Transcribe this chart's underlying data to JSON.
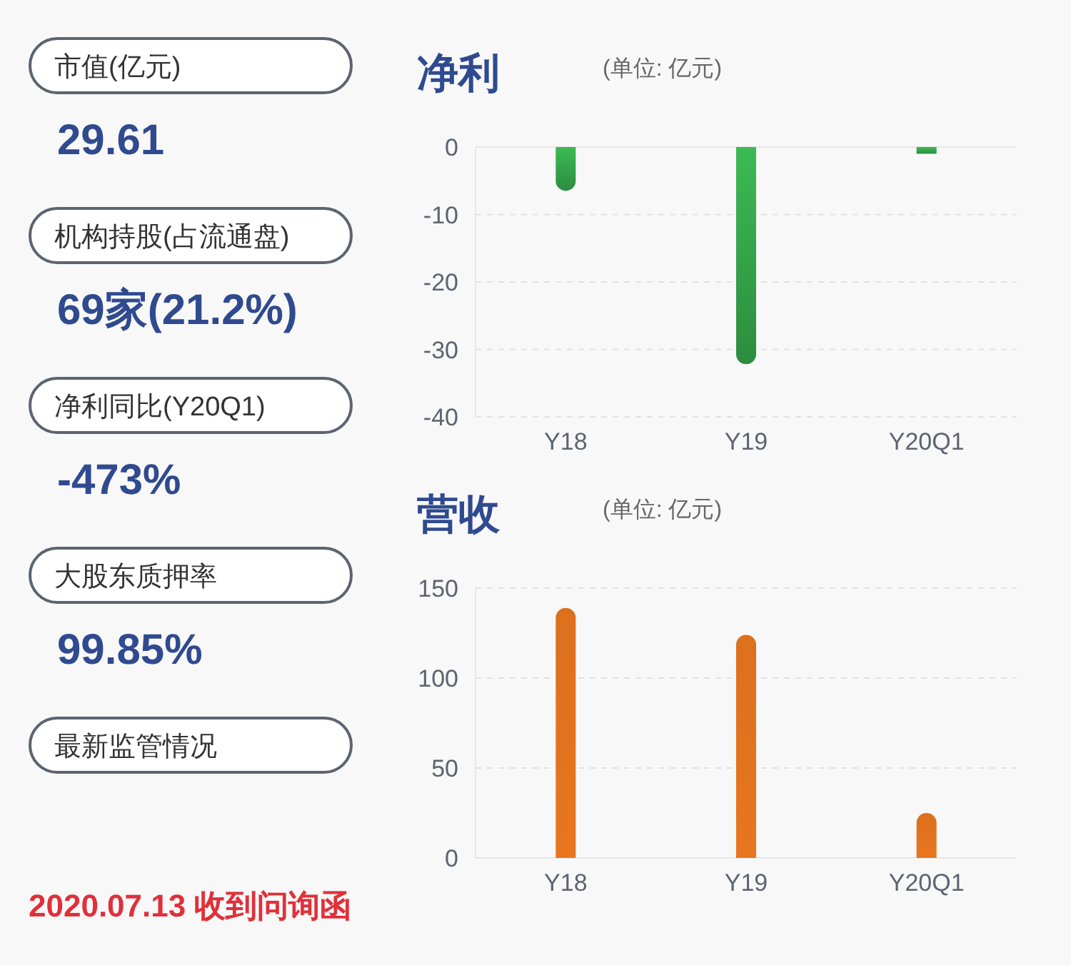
{
  "chart_data": [
    {
      "type": "other",
      "annotations": [
        "市值(亿元)",
        "29.61",
        "机构持股(占流通盘)",
        "69家(21.2%)",
        "净利同比(Y20Q1)",
        "-473%",
        "大股东质押率",
        "99.85%",
        "最新监管情况",
        "2020.07.13 收到问询函"
      ]
    },
    {
      "type": "bar",
      "title": "净利",
      "subtitle": "(单位: 亿元)",
      "categories": [
        "Y18",
        "Y19",
        "Y20Q1"
      ],
      "values": [
        -6.5,
        -32.2,
        -1.0
      ],
      "color": "#3cba54",
      "ylim": [
        -40,
        0
      ],
      "yticks": [
        -40,
        -30,
        -20,
        -10,
        0
      ],
      "grid": "y"
    },
    {
      "type": "bar",
      "title": "营收",
      "subtitle": "(单位: 亿元)",
      "categories": [
        "Y18",
        "Y19",
        "Y20Q1"
      ],
      "values": [
        139,
        124,
        25
      ],
      "color": "#e8761e",
      "ylim": [
        0,
        150
      ],
      "yticks": [
        0,
        50,
        100,
        150
      ],
      "grid": "y"
    }
  ]
}
